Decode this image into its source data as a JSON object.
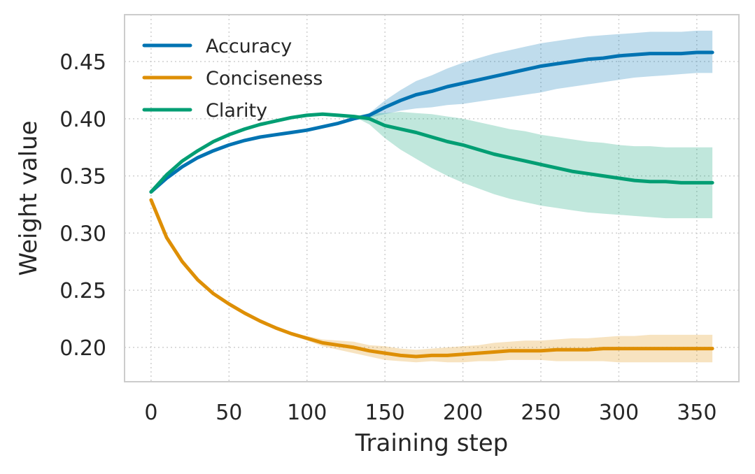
{
  "chart_data": {
    "type": "line",
    "title": "",
    "xlabel": "Training step",
    "ylabel": "Weight value",
    "xlim": [
      -17,
      377
    ],
    "ylim": [
      0.17,
      0.491
    ],
    "xticks": [
      0,
      50,
      100,
      150,
      200,
      250,
      300,
      350
    ],
    "yticks": [
      0.2,
      0.25,
      0.3,
      0.35,
      0.4,
      0.45
    ],
    "xtick_labels": [
      "0",
      "50",
      "100",
      "150",
      "200",
      "250",
      "300",
      "350"
    ],
    "ytick_labels": [
      "0.20",
      "0.25",
      "0.30",
      "0.35",
      "0.40",
      "0.45"
    ],
    "grid": true,
    "legend_position": "top-left",
    "series": [
      {
        "name": "Accuracy",
        "color": "#0173b2",
        "x": [
          0,
          10,
          20,
          30,
          40,
          50,
          60,
          70,
          80,
          90,
          100,
          110,
          120,
          130,
          140,
          150,
          160,
          170,
          180,
          190,
          200,
          210,
          220,
          230,
          240,
          250,
          260,
          270,
          280,
          290,
          300,
          310,
          320,
          330,
          340,
          350,
          360
        ],
        "mean": [
          0.336,
          0.348,
          0.358,
          0.366,
          0.372,
          0.377,
          0.381,
          0.384,
          0.386,
          0.388,
          0.39,
          0.393,
          0.396,
          0.4,
          0.403,
          0.41,
          0.416,
          0.421,
          0.424,
          0.428,
          0.431,
          0.434,
          0.437,
          0.44,
          0.443,
          0.446,
          0.448,
          0.45,
          0.452,
          0.453,
          0.455,
          0.456,
          0.457,
          0.457,
          0.457,
          0.458,
          0.458
        ],
        "lower": [
          0.336,
          0.348,
          0.358,
          0.366,
          0.372,
          0.377,
          0.381,
          0.384,
          0.386,
          0.388,
          0.39,
          0.393,
          0.396,
          0.4,
          0.401,
          0.404,
          0.407,
          0.409,
          0.41,
          0.412,
          0.413,
          0.415,
          0.417,
          0.419,
          0.421,
          0.423,
          0.426,
          0.428,
          0.43,
          0.432,
          0.434,
          0.436,
          0.437,
          0.438,
          0.439,
          0.44,
          0.44
        ],
        "upper": [
          0.336,
          0.348,
          0.358,
          0.366,
          0.372,
          0.377,
          0.381,
          0.384,
          0.386,
          0.388,
          0.39,
          0.393,
          0.396,
          0.4,
          0.405,
          0.416,
          0.425,
          0.433,
          0.438,
          0.444,
          0.449,
          0.453,
          0.457,
          0.46,
          0.463,
          0.466,
          0.468,
          0.47,
          0.472,
          0.473,
          0.474,
          0.475,
          0.476,
          0.476,
          0.476,
          0.477,
          0.477
        ]
      },
      {
        "name": "Conciseness",
        "color": "#de8f05",
        "x": [
          0,
          10,
          20,
          30,
          40,
          50,
          60,
          70,
          80,
          90,
          100,
          110,
          120,
          130,
          140,
          150,
          160,
          170,
          180,
          190,
          200,
          210,
          220,
          230,
          240,
          250,
          260,
          270,
          280,
          290,
          300,
          310,
          320,
          330,
          340,
          350,
          360
        ],
        "mean": [
          0.329,
          0.296,
          0.275,
          0.259,
          0.247,
          0.238,
          0.23,
          0.223,
          0.217,
          0.212,
          0.208,
          0.204,
          0.202,
          0.2,
          0.197,
          0.195,
          0.193,
          0.192,
          0.193,
          0.193,
          0.194,
          0.195,
          0.196,
          0.197,
          0.197,
          0.197,
          0.198,
          0.198,
          0.198,
          0.199,
          0.199,
          0.199,
          0.199,
          0.199,
          0.199,
          0.199,
          0.199
        ],
        "lower": [
          0.329,
          0.296,
          0.275,
          0.259,
          0.247,
          0.238,
          0.23,
          0.223,
          0.217,
          0.211,
          0.206,
          0.201,
          0.198,
          0.195,
          0.192,
          0.189,
          0.188,
          0.187,
          0.188,
          0.187,
          0.187,
          0.188,
          0.188,
          0.189,
          0.189,
          0.189,
          0.188,
          0.188,
          0.188,
          0.188,
          0.187,
          0.187,
          0.187,
          0.187,
          0.187,
          0.187,
          0.187
        ],
        "upper": [
          0.329,
          0.296,
          0.275,
          0.259,
          0.247,
          0.238,
          0.23,
          0.223,
          0.217,
          0.213,
          0.21,
          0.207,
          0.206,
          0.205,
          0.202,
          0.201,
          0.199,
          0.198,
          0.199,
          0.2,
          0.201,
          0.202,
          0.204,
          0.205,
          0.206,
          0.206,
          0.207,
          0.208,
          0.208,
          0.209,
          0.21,
          0.21,
          0.211,
          0.211,
          0.211,
          0.211,
          0.211
        ]
      },
      {
        "name": "Clarity",
        "color": "#029e73",
        "x": [
          0,
          10,
          20,
          30,
          40,
          50,
          60,
          70,
          80,
          90,
          100,
          110,
          120,
          130,
          140,
          150,
          160,
          170,
          180,
          190,
          200,
          210,
          220,
          230,
          240,
          250,
          260,
          270,
          280,
          290,
          300,
          310,
          320,
          330,
          340,
          350,
          360
        ],
        "mean": [
          0.336,
          0.351,
          0.363,
          0.372,
          0.38,
          0.386,
          0.391,
          0.395,
          0.398,
          0.401,
          0.403,
          0.404,
          0.403,
          0.402,
          0.4,
          0.394,
          0.391,
          0.388,
          0.384,
          0.38,
          0.377,
          0.373,
          0.369,
          0.366,
          0.363,
          0.36,
          0.357,
          0.354,
          0.352,
          0.35,
          0.348,
          0.346,
          0.345,
          0.345,
          0.344,
          0.344,
          0.344
        ],
        "lower": [
          0.336,
          0.351,
          0.363,
          0.372,
          0.38,
          0.386,
          0.391,
          0.395,
          0.398,
          0.401,
          0.403,
          0.404,
          0.403,
          0.402,
          0.395,
          0.383,
          0.373,
          0.365,
          0.357,
          0.35,
          0.344,
          0.339,
          0.334,
          0.33,
          0.327,
          0.324,
          0.322,
          0.32,
          0.318,
          0.317,
          0.316,
          0.315,
          0.314,
          0.313,
          0.313,
          0.313,
          0.313
        ],
        "upper": [
          0.336,
          0.351,
          0.363,
          0.372,
          0.38,
          0.386,
          0.391,
          0.395,
          0.398,
          0.401,
          0.403,
          0.404,
          0.403,
          0.402,
          0.405,
          0.405,
          0.406,
          0.405,
          0.404,
          0.402,
          0.4,
          0.397,
          0.394,
          0.391,
          0.389,
          0.386,
          0.384,
          0.382,
          0.38,
          0.379,
          0.377,
          0.376,
          0.376,
          0.375,
          0.375,
          0.375,
          0.375
        ]
      }
    ]
  }
}
